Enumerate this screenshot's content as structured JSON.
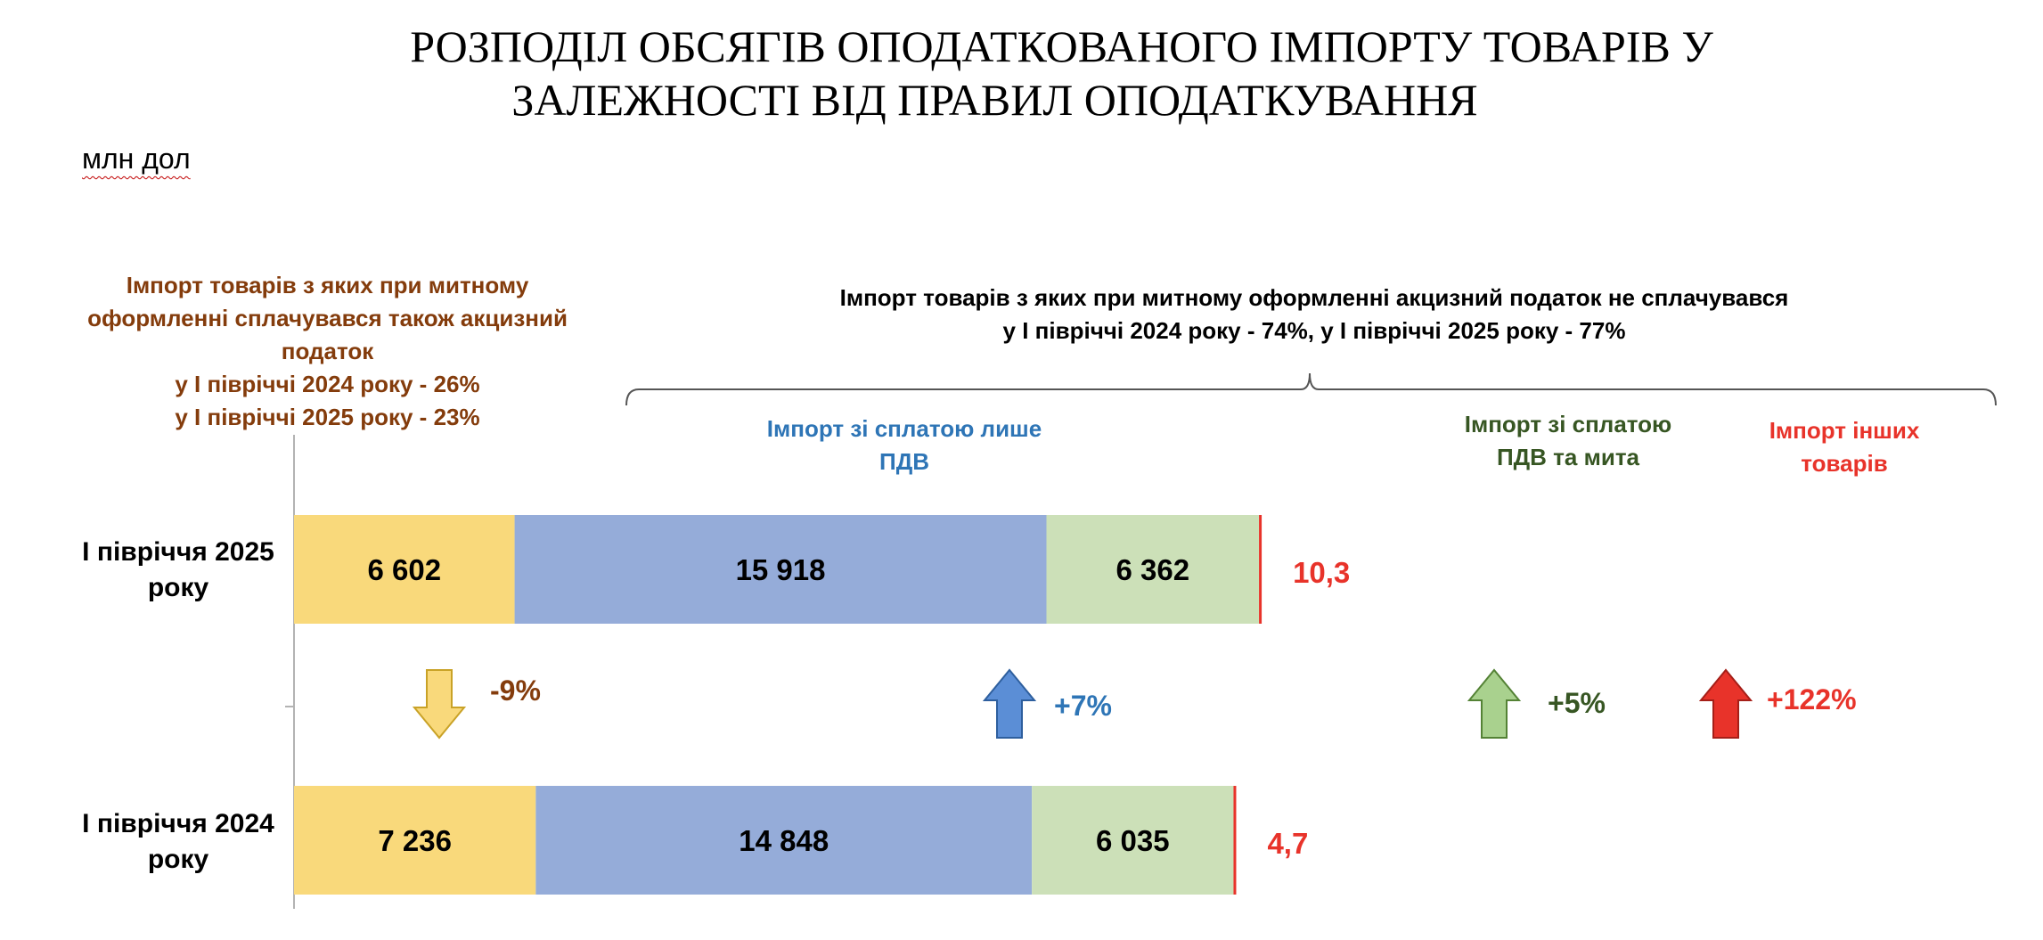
{
  "title": {
    "line1": "РОЗПОДІЛ ОБСЯГІВ ОПОДАТКОВАНОГО ІМПОРТУ ТОВАРІВ У",
    "line2": "ЗАЛЕЖНОСТІ ВІД ПРАВИЛ ОПОДАТКУВАННЯ"
  },
  "unit": "млн дол",
  "note_left": {
    "lines": [
      "Імпорт товарів з яких при митному",
      "оформленні сплачувався також акцизний",
      "податок",
      "у І півріччі 2024 року  - 26%",
      "у І півріччі 2025 року - 23%"
    ],
    "color": "#843c0c"
  },
  "note_right": {
    "lines": [
      "Імпорт товарів  з яких при митному оформленні акцизний податок не сплачувався",
      "у І півріччі 2024 року  - 74%, у І півріччі 2025 року - 77%"
    ]
  },
  "segment_headers": {
    "vat_only": {
      "lines": [
        "Імпорт зі сплатою лише",
        "ПДВ"
      ],
      "color": "#2e75b6"
    },
    "vat_duty": {
      "lines": [
        "Імпорт зі сплатою",
        "ПДВ та мита"
      ],
      "color": "#375623"
    },
    "other": {
      "lines": [
        "Імпорт інших",
        "товарів"
      ],
      "color": "#e8332a"
    }
  },
  "rows": {
    "r2025": {
      "lines": [
        "І півріччя 2025",
        "року"
      ]
    },
    "r2024": {
      "lines": [
        "І півріччя 2024",
        "року"
      ]
    }
  },
  "chart_data": {
    "type": "bar",
    "orientation": "horizontal",
    "stacked": true,
    "categories": [
      "І півріччя 2025 року",
      "І півріччя 2024 року"
    ],
    "series": [
      {
        "key": "excise",
        "values": [
          6602,
          7236
        ],
        "labels": [
          "6 602",
          "7 236"
        ],
        "color": "#f9d97b"
      },
      {
        "key": "vat_only",
        "values": [
          15918,
          14848
        ],
        "labels": [
          "15 918",
          "14 848"
        ],
        "color": "#95acd9"
      },
      {
        "key": "vat_duty",
        "values": [
          6362,
          6035
        ],
        "labels": [
          "6 362",
          "6 035"
        ],
        "color": "#cce0b8"
      },
      {
        "key": "other",
        "values": [
          10.3,
          4.7
        ],
        "labels": [
          "10,3",
          "4,7"
        ],
        "color": "#e8332a"
      }
    ],
    "changes": [
      {
        "key": "excise",
        "label": "-9%",
        "direction": "down",
        "color": "#843c0c",
        "arrow_color": "#f9d97b",
        "arrow_stroke": "#c9a227"
      },
      {
        "key": "vat_only",
        "label": "+7%",
        "direction": "up",
        "color": "#2e75b6",
        "arrow_color": "#5b8ed6",
        "arrow_stroke": "#2e5f9e"
      },
      {
        "key": "vat_duty",
        "label": "+5%",
        "direction": "up",
        "color": "#375623",
        "arrow_color": "#a9d18e",
        "arrow_stroke": "#548235"
      },
      {
        "key": "other",
        "label": "+122%",
        "direction": "up",
        "color": "#e8332a",
        "arrow_color": "#e8332a",
        "arrow_stroke": "#a51f18"
      }
    ]
  }
}
